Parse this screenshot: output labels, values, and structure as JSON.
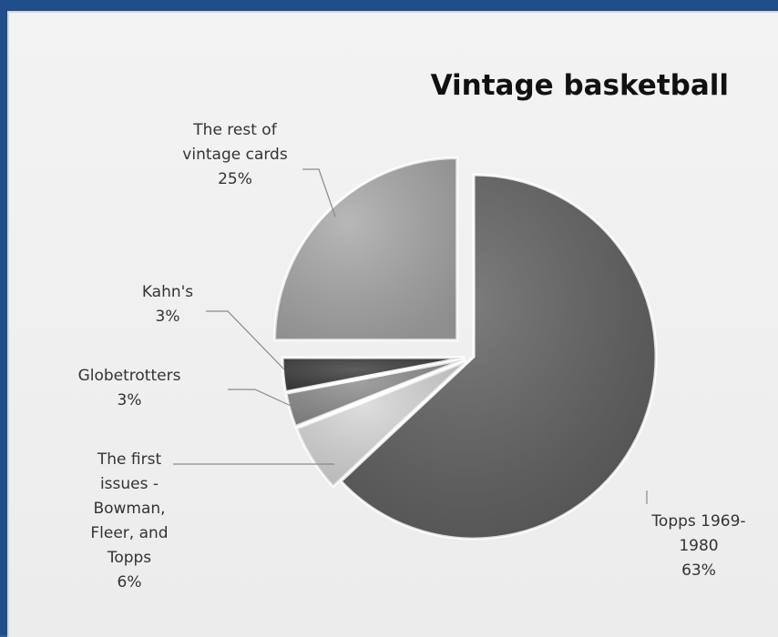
{
  "chart_data": {
    "type": "pie",
    "title": "Vintage basketball",
    "slices": [
      {
        "name": "Topps 1969-1980",
        "value": 63,
        "label_lines": [
          "Topps 1969-",
          "1980",
          "63%"
        ],
        "color": "#606060"
      },
      {
        "name": "The first issues - Bowman, Fleer, and Topps",
        "value": 6,
        "label_lines": [
          "The first",
          "issues -",
          "Bowman,",
          "Fleer, and",
          "Topps",
          "6%"
        ],
        "color": "#d6d6d6"
      },
      {
        "name": "Globetrotters",
        "value": 3,
        "label_lines": [
          "Globetrotters",
          "3%"
        ],
        "color": "#8c8c8c"
      },
      {
        "name": "Kahn's",
        "value": 3,
        "label_lines": [
          "Kahn's",
          "3%"
        ],
        "color": "#3a3a3a"
      },
      {
        "name": "The rest of vintage cards",
        "value": 25,
        "label_lines": [
          "The rest of",
          "vintage cards",
          "25%"
        ],
        "color": "#a8a8a8"
      }
    ],
    "legend": "none"
  }
}
